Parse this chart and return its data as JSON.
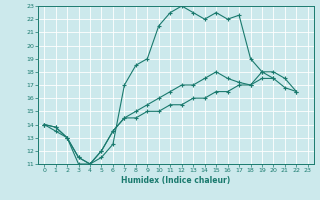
{
  "xlabel": "Humidex (Indice chaleur)",
  "xlim": [
    -0.5,
    23.5
  ],
  "ylim": [
    11,
    23
  ],
  "xticks": [
    0,
    1,
    2,
    3,
    4,
    5,
    6,
    7,
    8,
    9,
    10,
    11,
    12,
    13,
    14,
    15,
    16,
    17,
    18,
    19,
    20,
    21,
    22,
    23
  ],
  "yticks": [
    11,
    12,
    13,
    14,
    15,
    16,
    17,
    18,
    19,
    20,
    21,
    22,
    23
  ],
  "bg_color": "#cce9ec",
  "grid_color": "#ffffff",
  "line_color": "#1a7a6e",
  "line1_x": [
    0,
    1,
    2,
    3,
    4,
    5,
    6,
    7,
    8,
    9,
    10,
    11,
    12,
    13,
    14,
    15,
    16,
    17,
    18,
    19,
    20
  ],
  "line1_y": [
    14,
    13.8,
    13.0,
    11.0,
    11.0,
    11.5,
    12.5,
    17.0,
    18.5,
    19.0,
    21.5,
    22.5,
    23.0,
    22.5,
    22.0,
    22.5,
    22.0,
    22.3,
    19.0,
    18.0,
    17.5
  ],
  "line2_x": [
    0,
    1,
    2,
    3,
    4,
    5,
    6,
    7,
    8,
    9,
    10,
    11,
    12,
    13,
    14,
    15,
    16,
    17,
    18,
    19,
    20,
    21,
    22
  ],
  "line2_y": [
    14.0,
    13.5,
    13.0,
    11.5,
    11.0,
    12.0,
    13.5,
    14.5,
    15.0,
    15.5,
    16.0,
    16.5,
    17.0,
    17.0,
    17.5,
    18.0,
    17.5,
    17.2,
    17.0,
    18.0,
    18.0,
    17.5,
    16.5
  ],
  "line3_x": [
    0,
    1,
    2,
    3,
    4,
    5,
    6,
    7,
    8,
    9,
    10,
    11,
    12,
    13,
    14,
    15,
    16,
    17,
    18,
    19,
    20,
    21,
    22
  ],
  "line3_y": [
    14.0,
    13.8,
    13.0,
    11.5,
    11.0,
    12.0,
    13.5,
    14.5,
    14.5,
    15.0,
    15.0,
    15.5,
    15.5,
    16.0,
    16.0,
    16.5,
    16.5,
    17.0,
    17.0,
    17.5,
    17.5,
    16.8,
    16.5
  ]
}
